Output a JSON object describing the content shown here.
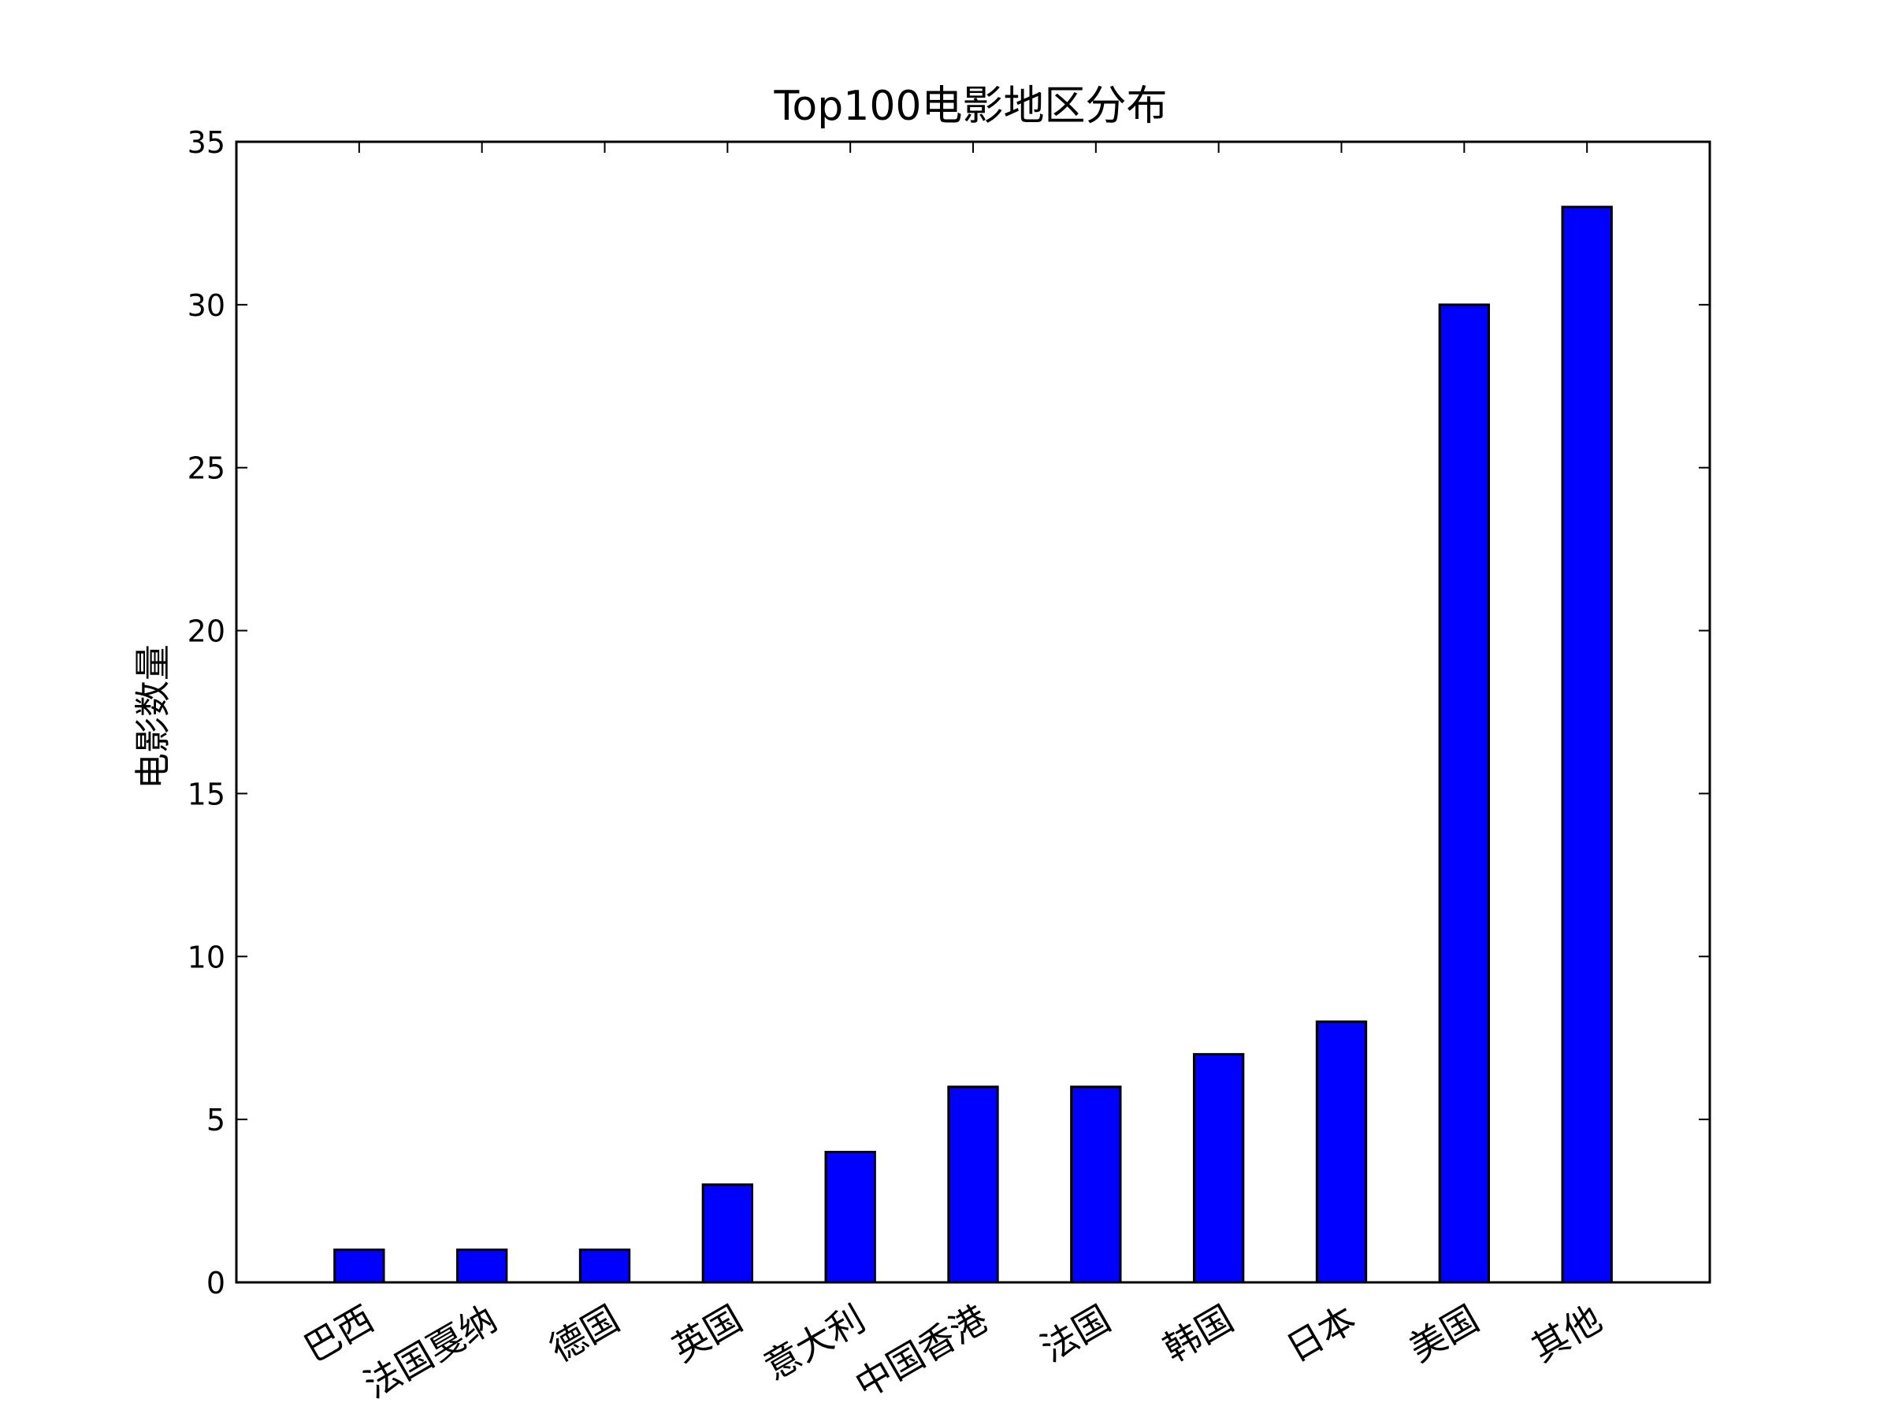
{
  "chart_data": {
    "type": "bar",
    "title": "Top100电影地区分布",
    "xlabel": "",
    "ylabel": "电影数量",
    "categories": [
      "巴西",
      "法国戛纳",
      "德国",
      "英国",
      "意大利",
      "中国香港",
      "法国",
      "韩国",
      "日本",
      "美国",
      "其他"
    ],
    "values": [
      1,
      1,
      1,
      3,
      4,
      6,
      6,
      7,
      8,
      30,
      33
    ],
    "ylim": [
      0,
      35
    ],
    "yticks": [
      0,
      5,
      10,
      15,
      20,
      25,
      30,
      35
    ],
    "grid": false,
    "bar_color": "#0000ff",
    "edge_color": "#000000"
  }
}
